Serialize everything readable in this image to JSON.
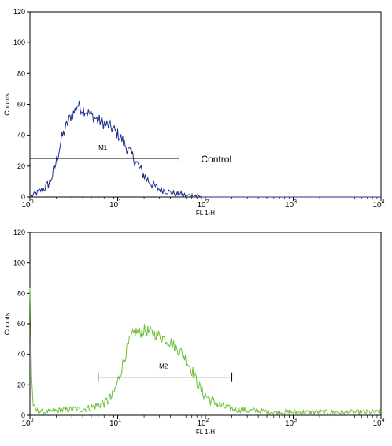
{
  "chart_data": [
    {
      "type": "line",
      "xlabel": "FL 1-H",
      "ylabel": "Counts",
      "xscale": "log",
      "xlim": [
        1,
        10000
      ],
      "ylim": [
        0,
        120
      ],
      "x_ticks": [
        {
          "base": "10",
          "exp": "0"
        },
        {
          "base": "10",
          "exp": "1"
        },
        {
          "base": "10",
          "exp": "2"
        },
        {
          "base": "10",
          "exp": "3"
        },
        {
          "base": "10",
          "exp": "4"
        }
      ],
      "y_ticks": [
        "0",
        "20",
        "40",
        "60",
        "80",
        "100",
        "120"
      ],
      "color": "#1c2f8f",
      "marker": {
        "label": "M1",
        "x_range": [
          1,
          50
        ],
        "y": 25
      },
      "annotation": "Control",
      "series": [
        {
          "x": [
            1.0,
            1.15,
            1.3,
            1.5,
            1.7,
            1.9,
            2.1,
            2.3,
            2.6,
            2.9,
            3.2,
            3.5,
            3.9,
            4.3,
            4.8,
            5.3,
            5.9,
            6.5,
            7.2,
            8.0,
            8.9,
            9.9,
            11,
            12,
            13.5,
            15,
            16.5,
            18,
            20,
            23,
            26,
            30,
            35,
            40,
            46,
            53,
            60,
            70,
            80,
            90,
            100,
            120,
            150,
            200,
            300,
            500,
            1000,
            2000,
            5000,
            10000
          ],
          "y": [
            0,
            2,
            4,
            6,
            10,
            18,
            28,
            38,
            46,
            52,
            55,
            60,
            57,
            56,
            54,
            52,
            50,
            49,
            47,
            46,
            44,
            41,
            38,
            34,
            30,
            26,
            22,
            18,
            14,
            10,
            7,
            5,
            4,
            3,
            2,
            2,
            1,
            1,
            1,
            0,
            0,
            0,
            0,
            0,
            0,
            0,
            0,
            0,
            0,
            0
          ],
          "noise": 4
        }
      ]
    },
    {
      "type": "line",
      "xlabel": "FL 1-H",
      "ylabel": "Counts",
      "xscale": "log",
      "xlim": [
        1,
        10000
      ],
      "ylim": [
        0,
        120
      ],
      "x_ticks": [
        {
          "base": "10",
          "exp": "0"
        },
        {
          "base": "10",
          "exp": "1"
        },
        {
          "base": "10",
          "exp": "2"
        },
        {
          "base": "10",
          "exp": "3"
        },
        {
          "base": "10",
          "exp": "4"
        }
      ],
      "y_ticks": [
        "0",
        "20",
        "40",
        "60",
        "80",
        "100",
        "120"
      ],
      "color": "#6fbf3c",
      "marker": {
        "label": "M2",
        "x_range": [
          6,
          200
        ],
        "y": 25
      },
      "series": [
        {
          "x": [
            1.0,
            1.02,
            1.05,
            1.1,
            1.2,
            1.5,
            2,
            3,
            4,
            5,
            6,
            7,
            8,
            9,
            10,
            11,
            12,
            13,
            14,
            15,
            16,
            18,
            20,
            22,
            25,
            28,
            31,
            35,
            40,
            45,
            50,
            55,
            60,
            65,
            70,
            75,
            80,
            90,
            100,
            110,
            120,
            140,
            170,
            200,
            250,
            300,
            400,
            600,
            1000,
            2000,
            5000,
            10000
          ],
          "y": [
            85,
            60,
            20,
            5,
            3,
            2,
            3,
            4,
            4,
            5,
            7,
            8,
            10,
            14,
            22,
            30,
            38,
            45,
            50,
            53,
            55,
            54,
            56,
            55,
            54,
            53,
            52,
            50,
            48,
            45,
            43,
            40,
            37,
            33,
            30,
            26,
            22,
            16,
            13,
            11,
            9,
            7,
            5,
            4,
            4,
            3,
            3,
            2,
            2,
            2,
            2,
            2
          ],
          "noise": 4
        }
      ]
    }
  ]
}
